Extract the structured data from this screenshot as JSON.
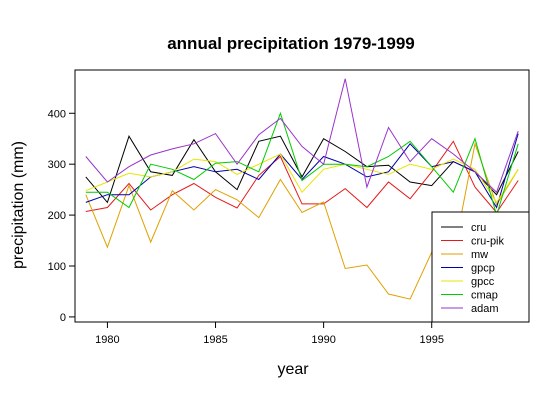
{
  "chart_data": {
    "type": "line",
    "title": "annual precipitation 1979-1999",
    "xlabel": "year",
    "ylabel": "precipitation (mm)",
    "xlim": [
      1978.5,
      1999.5
    ],
    "ylim": [
      -10,
      485
    ],
    "x_ticks": [
      1980,
      1985,
      1990,
      1995
    ],
    "y_ticks": [
      0,
      100,
      200,
      300,
      400
    ],
    "grid": false,
    "legend_position": "bottom-right",
    "x": [
      1979,
      1980,
      1981,
      1982,
      1983,
      1984,
      1985,
      1986,
      1987,
      1988,
      1989,
      1990,
      1991,
      1992,
      1993,
      1994,
      1995,
      1996,
      1997,
      1998,
      1999
    ],
    "series": [
      {
        "name": "cru",
        "color": "#000000",
        "values": [
          275,
          225,
          355,
          285,
          278,
          348,
          285,
          250,
          345,
          355,
          275,
          350,
          325,
          295,
          298,
          265,
          258,
          305,
          285,
          240,
          325
        ]
      },
      {
        "name": "cru-pik",
        "color": "#e41a1c",
        "values": [
          207,
          215,
          262,
          210,
          240,
          262,
          235,
          214,
          278,
          315,
          222,
          222,
          252,
          215,
          265,
          232,
          285,
          345,
          255,
          205,
          268
        ]
      },
      {
        "name": "mw",
        "color": "#e0a000",
        "values": [
          240,
          137,
          258,
          147,
          248,
          210,
          250,
          230,
          195,
          270,
          205,
          226,
          95,
          102,
          45,
          35,
          127,
          120,
          340,
          220,
          290
        ]
      },
      {
        "name": "gpcp",
        "color": "#0000aa",
        "values": [
          225,
          240,
          240,
          275,
          285,
          295,
          285,
          290,
          270,
          320,
          270,
          315,
          300,
          275,
          285,
          340,
          295,
          305,
          285,
          215,
          360
        ]
      },
      {
        "name": "gpcc",
        "color": "#e6e600",
        "values": [
          248,
          265,
          282,
          275,
          285,
          310,
          305,
          280,
          300,
          320,
          245,
          290,
          300,
          290,
          280,
          300,
          290,
          310,
          290,
          225,
          290
        ]
      },
      {
        "name": "cmap",
        "color": "#00cc00",
        "values": [
          245,
          245,
          215,
          300,
          290,
          270,
          302,
          305,
          285,
          400,
          268,
          300,
          300,
          295,
          315,
          345,
          295,
          245,
          350,
          200,
          340
        ]
      },
      {
        "name": "adam",
        "color": "#9933cc",
        "values": [
          315,
          265,
          295,
          318,
          330,
          340,
          360,
          300,
          358,
          390,
          335,
          300,
          468,
          255,
          372,
          305,
          350,
          320,
          285,
          245,
          365
        ]
      }
    ]
  }
}
